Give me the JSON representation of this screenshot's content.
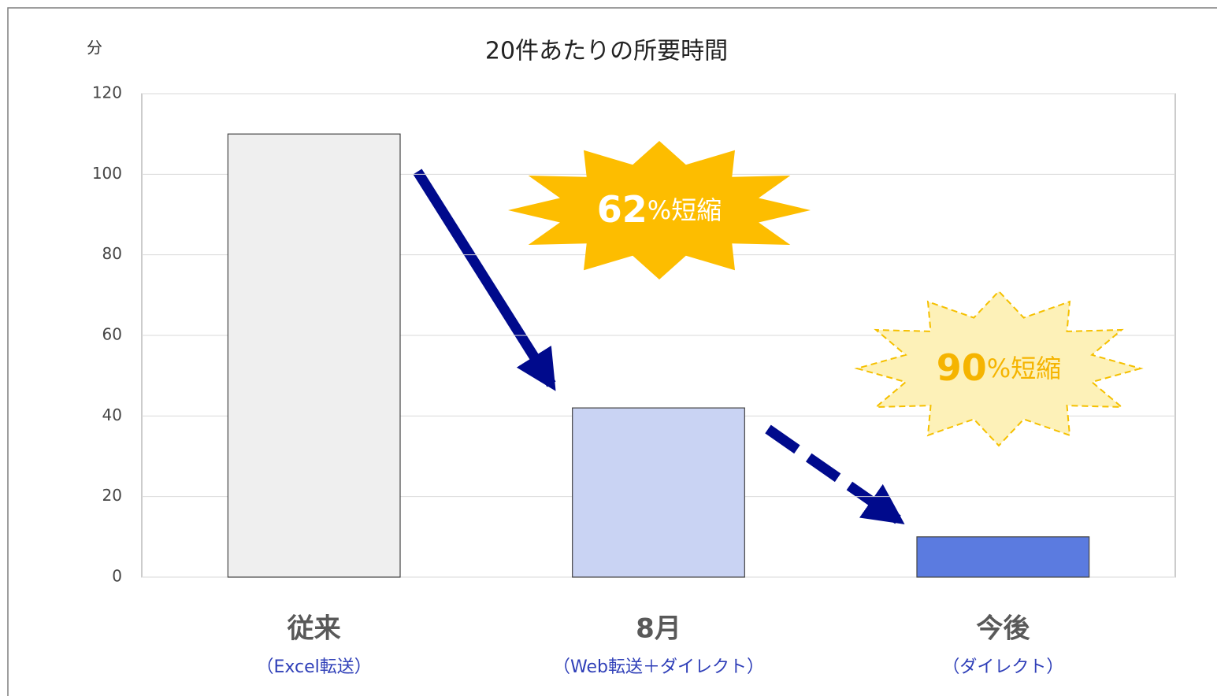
{
  "chart_data": {
    "type": "bar",
    "title": "20件あたりの所要時間",
    "y_axis_label": "分",
    "categories": [
      "従来",
      "8月",
      "今後"
    ],
    "category_notes": [
      "（Excel転送）",
      "（Web転送＋ダイレクト）",
      "（ダイレクト）"
    ],
    "values": [
      110,
      42,
      10
    ],
    "colors": [
      "#efefef",
      "#c9d3f3",
      "#5b7be0"
    ],
    "ylim": [
      0,
      120
    ],
    "yticks": [
      0,
      20,
      40,
      60,
      80,
      100,
      120
    ],
    "grid": true,
    "annotations": [
      {
        "number": "62",
        "text": "%短縮"
      },
      {
        "number": "90",
        "text": "%短縮"
      }
    ]
  }
}
